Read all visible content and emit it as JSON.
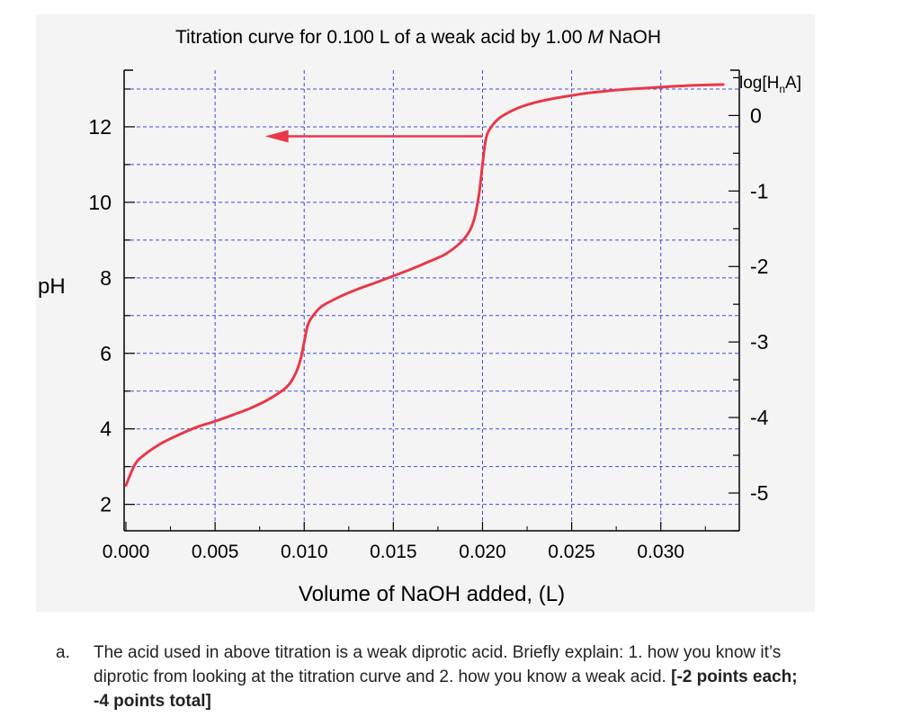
{
  "chart_data": {
    "type": "line",
    "title": "Titration curve for 0.100 L of a weak acid by 1.00 M NaOH",
    "title_parts": {
      "before": "Titration curve for 0.100 L of a weak acid by 1.00 ",
      "italic": "M",
      "after": " NaOH"
    },
    "xlabel": "Volume of NaOH added, (L)",
    "ylabel": "pH",
    "y2label": "log[HnA]",
    "y2label_parts": {
      "main": "log[H",
      "sub": "n",
      "close": "A]"
    },
    "xlim": [
      0,
      0.034
    ],
    "ylim": [
      1.3,
      13.5
    ],
    "y2lim": [
      -5.5,
      0.6
    ],
    "grid": true,
    "x_ticks": [
      "0.000",
      "0.005",
      "0.010",
      "0.015",
      "0.020",
      "0.025",
      "0.030"
    ],
    "x_tick_values": [
      0,
      0.005,
      0.01,
      0.015,
      0.02,
      0.025,
      0.03
    ],
    "y_ticks": [
      "2",
      "4",
      "6",
      "8",
      "10",
      "12"
    ],
    "y_tick_values": [
      2,
      4,
      6,
      8,
      10,
      12
    ],
    "y2_ticks": [
      "0",
      "-1",
      "-2",
      "-3",
      "-4",
      "-5"
    ],
    "y2_tick_values": [
      0,
      -1,
      -2,
      -3,
      -4,
      -5
    ],
    "series": [
      {
        "color": "#e8384a",
        "x": [
          0.0,
          0.0005,
          0.001,
          0.002,
          0.003,
          0.004,
          0.005,
          0.006,
          0.007,
          0.008,
          0.009,
          0.0095,
          0.0098,
          0.01,
          0.0102,
          0.0105,
          0.011,
          0.012,
          0.013,
          0.014,
          0.015,
          0.016,
          0.017,
          0.018,
          0.019,
          0.0195,
          0.0198,
          0.02,
          0.0202,
          0.0205,
          0.021,
          0.022,
          0.023,
          0.024,
          0.025,
          0.026,
          0.027,
          0.028,
          0.029,
          0.03,
          0.031,
          0.032,
          0.0335
        ],
        "y": [
          2.5,
          3.05,
          3.3,
          3.62,
          3.85,
          4.05,
          4.2,
          4.37,
          4.55,
          4.78,
          5.1,
          5.45,
          5.85,
          6.3,
          6.75,
          7.0,
          7.25,
          7.5,
          7.7,
          7.87,
          8.05,
          8.23,
          8.43,
          8.65,
          9.05,
          9.5,
          10.2,
          11.0,
          11.7,
          12.0,
          12.25,
          12.5,
          12.65,
          12.75,
          12.83,
          12.9,
          12.95,
          12.99,
          13.02,
          13.05,
          13.08,
          13.1,
          13.12
        ]
      }
    ],
    "annotations": [
      {
        "type": "arrow",
        "color": "#e8384a",
        "from": {
          "x": 0.02,
          "y": 11.75
        },
        "to": {
          "x": 0.0078,
          "y": 11.75
        }
      }
    ]
  },
  "question": {
    "letter": "a.",
    "text": "The acid used in above titration is a weak diprotic acid. Briefly explain: 1. how you know it’s diprotic from looking at the titration curve and 2. how you know a weak acid. ",
    "points": "[-2 points each; -4 points total]"
  }
}
